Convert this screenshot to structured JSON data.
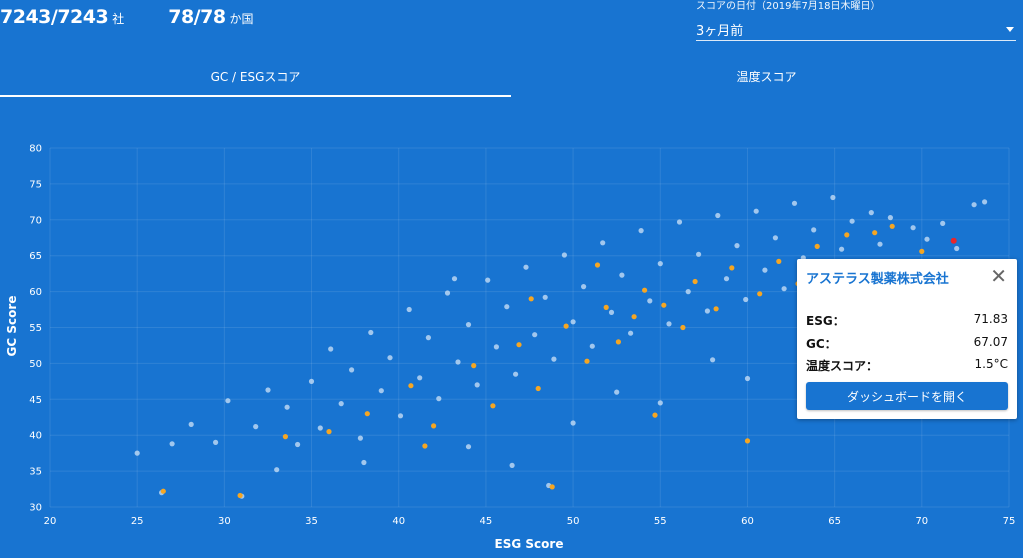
{
  "stats": {
    "companies": {
      "value": "7243/7243",
      "unit": "社"
    },
    "countries": {
      "value": "78/78",
      "unit": "か国"
    }
  },
  "date_select": {
    "label": "スコアの日付（2019年7月18日木曜日）",
    "value": "3ヶ月前"
  },
  "tabs": [
    {
      "label": "GC / ESGスコア",
      "active": true
    },
    {
      "label": "温度スコア",
      "active": false
    }
  ],
  "chart_data": {
    "type": "scatter",
    "xlabel": "ESG Score",
    "ylabel": "GC Score",
    "xlim": [
      20,
      75
    ],
    "ylim": [
      30,
      80
    ],
    "xticks": [
      20,
      25,
      30,
      35,
      40,
      45,
      50,
      55,
      60,
      65,
      70,
      75
    ],
    "yticks": [
      30,
      35,
      40,
      45,
      50,
      55,
      60,
      65,
      70,
      75,
      80
    ],
    "grid": true,
    "colors": {
      "background": "#1874d1",
      "points": "#cfe3f7",
      "highlight": "#f5a623",
      "selected": "#e8262a"
    },
    "series": [
      {
        "values": [
          [
            25.0,
            37.5
          ],
          [
            26.4,
            32.0
          ],
          [
            27.0,
            38.8
          ],
          [
            28.1,
            41.5
          ],
          [
            29.5,
            39.0
          ],
          [
            30.2,
            44.8
          ],
          [
            31.0,
            31.5
          ],
          [
            31.8,
            41.2
          ],
          [
            32.5,
            46.3
          ],
          [
            33.0,
            35.2
          ],
          [
            33.6,
            43.9
          ],
          [
            34.2,
            38.7
          ],
          [
            35.0,
            47.5
          ],
          [
            35.5,
            41.0
          ],
          [
            36.1,
            52.0
          ],
          [
            36.7,
            44.4
          ],
          [
            37.3,
            49.1
          ],
          [
            37.8,
            39.6
          ],
          [
            38.4,
            54.3
          ],
          [
            39.0,
            46.2
          ],
          [
            39.5,
            50.8
          ],
          [
            40.1,
            42.7
          ],
          [
            40.6,
            57.5
          ],
          [
            41.2,
            48.0
          ],
          [
            41.7,
            53.6
          ],
          [
            42.3,
            45.1
          ],
          [
            42.8,
            59.8
          ],
          [
            43.4,
            50.2
          ],
          [
            44.0,
            55.4
          ],
          [
            44.5,
            47.0
          ],
          [
            45.1,
            61.6
          ],
          [
            45.6,
            52.3
          ],
          [
            46.2,
            57.9
          ],
          [
            46.7,
            48.5
          ],
          [
            47.3,
            63.4
          ],
          [
            47.8,
            54.0
          ],
          [
            48.4,
            59.2
          ],
          [
            48.9,
            50.6
          ],
          [
            49.5,
            65.1
          ],
          [
            50.0,
            55.8
          ],
          [
            50.6,
            60.7
          ],
          [
            51.1,
            52.4
          ],
          [
            51.7,
            66.8
          ],
          [
            52.2,
            57.1
          ],
          [
            52.8,
            62.3
          ],
          [
            53.3,
            54.2
          ],
          [
            53.9,
            68.5
          ],
          [
            54.4,
            58.7
          ],
          [
            55.0,
            63.9
          ],
          [
            55.5,
            55.5
          ],
          [
            56.1,
            69.7
          ],
          [
            56.6,
            60.0
          ],
          [
            57.2,
            65.2
          ],
          [
            57.7,
            57.3
          ],
          [
            58.3,
            70.6
          ],
          [
            58.8,
            61.8
          ],
          [
            59.4,
            66.4
          ],
          [
            59.9,
            58.9
          ],
          [
            60.5,
            71.2
          ],
          [
            61.0,
            63.0
          ],
          [
            61.6,
            67.5
          ],
          [
            62.1,
            60.4
          ],
          [
            62.7,
            72.3
          ],
          [
            63.2,
            64.7
          ],
          [
            63.8,
            68.6
          ],
          [
            64.3,
            61.5
          ],
          [
            64.9,
            73.1
          ],
          [
            65.4,
            65.9
          ],
          [
            66.0,
            69.8
          ],
          [
            66.5,
            62.7
          ],
          [
            67.1,
            71.0
          ],
          [
            67.6,
            66.6
          ],
          [
            68.2,
            70.3
          ],
          [
            68.8,
            64.1
          ],
          [
            69.5,
            68.9
          ],
          [
            70.3,
            67.3
          ],
          [
            71.2,
            69.5
          ],
          [
            72.0,
            66.0
          ],
          [
            73.0,
            72.1
          ],
          [
            73.6,
            72.5
          ],
          [
            38.0,
            36.2
          ],
          [
            44.0,
            38.4
          ],
          [
            50.0,
            41.7
          ],
          [
            55.0,
            44.5
          ],
          [
            60.0,
            47.9
          ],
          [
            48.6,
            33.0
          ],
          [
            43.2,
            61.8
          ],
          [
            46.5,
            35.8
          ],
          [
            52.5,
            46.0
          ],
          [
            58.0,
            50.5
          ]
        ]
      },
      {
        "name": "highlight",
        "values": [
          [
            26.5,
            32.2
          ],
          [
            30.9,
            31.6
          ],
          [
            33.5,
            39.8
          ],
          [
            36.0,
            40.5
          ],
          [
            38.2,
            43.0
          ],
          [
            40.7,
            46.9
          ],
          [
            42.0,
            41.3
          ],
          [
            44.3,
            49.7
          ],
          [
            45.4,
            44.1
          ],
          [
            46.9,
            52.6
          ],
          [
            48.0,
            46.5
          ],
          [
            48.8,
            32.8
          ],
          [
            49.6,
            55.2
          ],
          [
            50.8,
            50.3
          ],
          [
            51.9,
            57.8
          ],
          [
            52.6,
            53.0
          ],
          [
            53.5,
            56.5
          ],
          [
            54.1,
            60.2
          ],
          [
            55.2,
            58.1
          ],
          [
            56.3,
            55.0
          ],
          [
            57.0,
            61.4
          ],
          [
            58.2,
            57.6
          ],
          [
            59.1,
            63.3
          ],
          [
            60.0,
            39.2
          ],
          [
            60.7,
            59.7
          ],
          [
            61.8,
            64.2
          ],
          [
            62.9,
            61.1
          ],
          [
            64.0,
            66.3
          ],
          [
            65.7,
            67.9
          ],
          [
            67.3,
            68.2
          ],
          [
            68.3,
            69.1
          ],
          [
            70.0,
            65.6
          ],
          [
            41.5,
            38.5
          ],
          [
            54.7,
            42.8
          ],
          [
            47.6,
            59.0
          ],
          [
            51.4,
            63.7
          ]
        ]
      },
      {
        "name": "selected",
        "values": [
          [
            71.83,
            67.07
          ]
        ]
      }
    ]
  },
  "popup": {
    "company": "アステラス製薬株式会社",
    "rows": [
      {
        "label": "ESG：",
        "value": "71.83"
      },
      {
        "label": "GC：",
        "value": "67.07"
      },
      {
        "label": "温度スコア：",
        "value": "1.5°C"
      }
    ],
    "button": "ダッシュボードを開く"
  }
}
